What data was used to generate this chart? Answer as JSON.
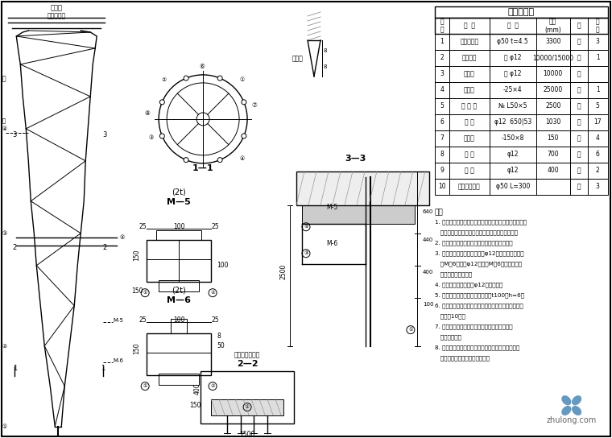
{
  "title": "构件材料表",
  "background_color": "#ffffff",
  "border_color": "#000000",
  "table_headers": [
    "编号",
    "名称",
    "规格",
    "长度(mm)",
    "标",
    "数量"
  ],
  "table_rows": [
    [
      "1",
      "不锈钢管管",
      "φ50 t=4.5",
      "3300",
      "套",
      "3"
    ],
    [
      "2",
      "钢管箍箍",
      "单 φ12",
      "10000/15000",
      "套",
      "1"
    ],
    [
      "3",
      "箍钢筋",
      "单 φ12",
      "10000",
      "套",
      ""
    ],
    [
      "4",
      "扁钢筋",
      "-25×4",
      "25000",
      "套",
      "1"
    ],
    [
      "5",
      "等 边 角",
      "№ L50×5",
      "2500",
      "套",
      "5"
    ],
    [
      "6",
      "支 座",
      "φ12  650|53",
      "1030",
      "套",
      "17"
    ],
    [
      "7",
      "钢板板",
      "-150×8",
      "150",
      "套",
      "4"
    ],
    [
      "8",
      "套 筒",
      "φ12",
      "700",
      "套",
      "6"
    ],
    [
      "9",
      "套 筒",
      "φ12",
      "400",
      "套",
      "2"
    ],
    [
      "10",
      "不锈钢制头头",
      "φ50 L=300",
      "",
      "个",
      "3"
    ]
  ],
  "notes_title": "注：",
  "watermark": "zhulong.com"
}
